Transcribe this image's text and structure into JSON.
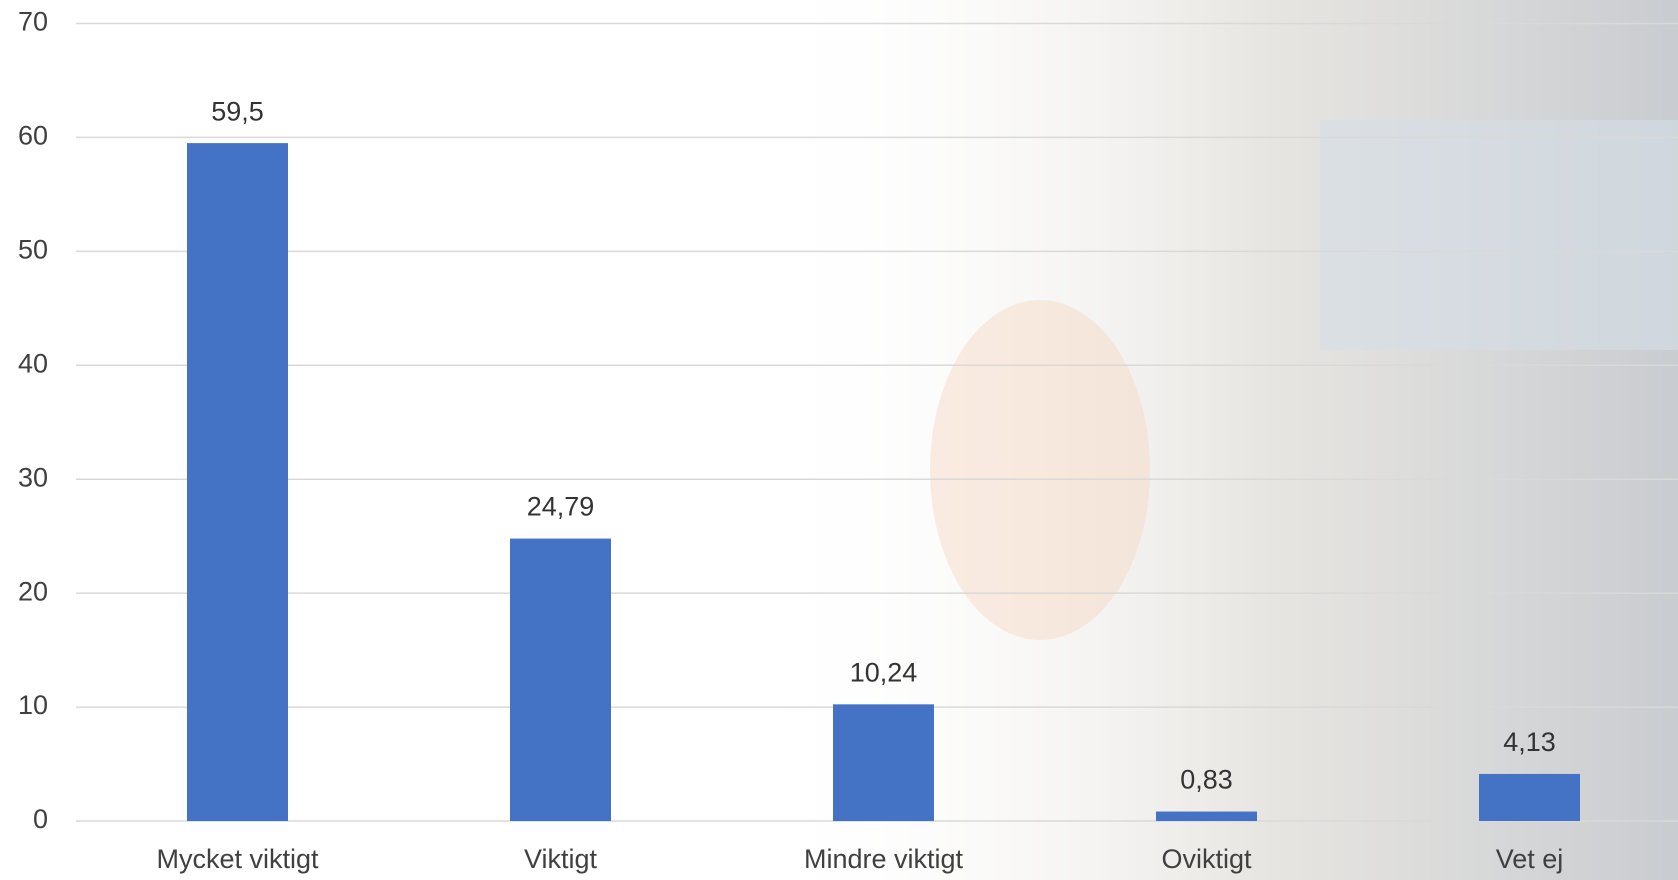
{
  "chart_data": {
    "type": "bar",
    "categories": [
      "Mycket viktigt",
      "Viktigt",
      "Mindre viktigt",
      "Oviktigt",
      "Vet ej"
    ],
    "values": [
      59.5,
      24.79,
      10.24,
      0.83,
      4.13
    ],
    "value_labels": [
      "59,5",
      "24,79",
      "10,24",
      "0,83",
      "4,13"
    ],
    "color": "#4472c4",
    "ylim": [
      0,
      70
    ],
    "yticks": [
      0,
      10,
      20,
      30,
      40,
      50,
      60,
      70
    ],
    "grid": true
  }
}
